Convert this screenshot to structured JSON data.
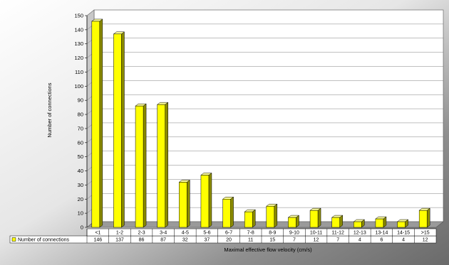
{
  "chart_data": {
    "type": "bar",
    "title": "",
    "xlabel": "Maximal effective flow velocity (cm/s)",
    "ylabel": "Number of connections",
    "ylim": [
      0,
      150
    ],
    "y_ticks": [
      "0",
      "10",
      "20",
      "30",
      "40",
      "50",
      "60",
      "70",
      "80",
      "90",
      "100",
      "110",
      "120",
      "130",
      "140",
      "150"
    ],
    "grid": true,
    "legend": "data table, left",
    "categories": [
      "<1",
      "1-2",
      "2-3",
      "3-4",
      "4-5",
      "5-6",
      "6-7",
      "7-8",
      "8-9",
      "9-10",
      "10-11",
      "11-12",
      "12-13",
      "13-14",
      "14-15",
      ">15"
    ],
    "series": [
      {
        "name": "Number of connections",
        "color": "#ffff00",
        "values": [
          146,
          137,
          86,
          87,
          32,
          37,
          20,
          11,
          15,
          7,
          12,
          7,
          4,
          6,
          4,
          12
        ],
        "value_labels": [
          "146",
          "137",
          "86",
          "87",
          "32",
          "37",
          "20",
          "11",
          "15",
          "7",
          "12",
          "7",
          "4",
          "6",
          "4",
          "12"
        ]
      }
    ]
  }
}
